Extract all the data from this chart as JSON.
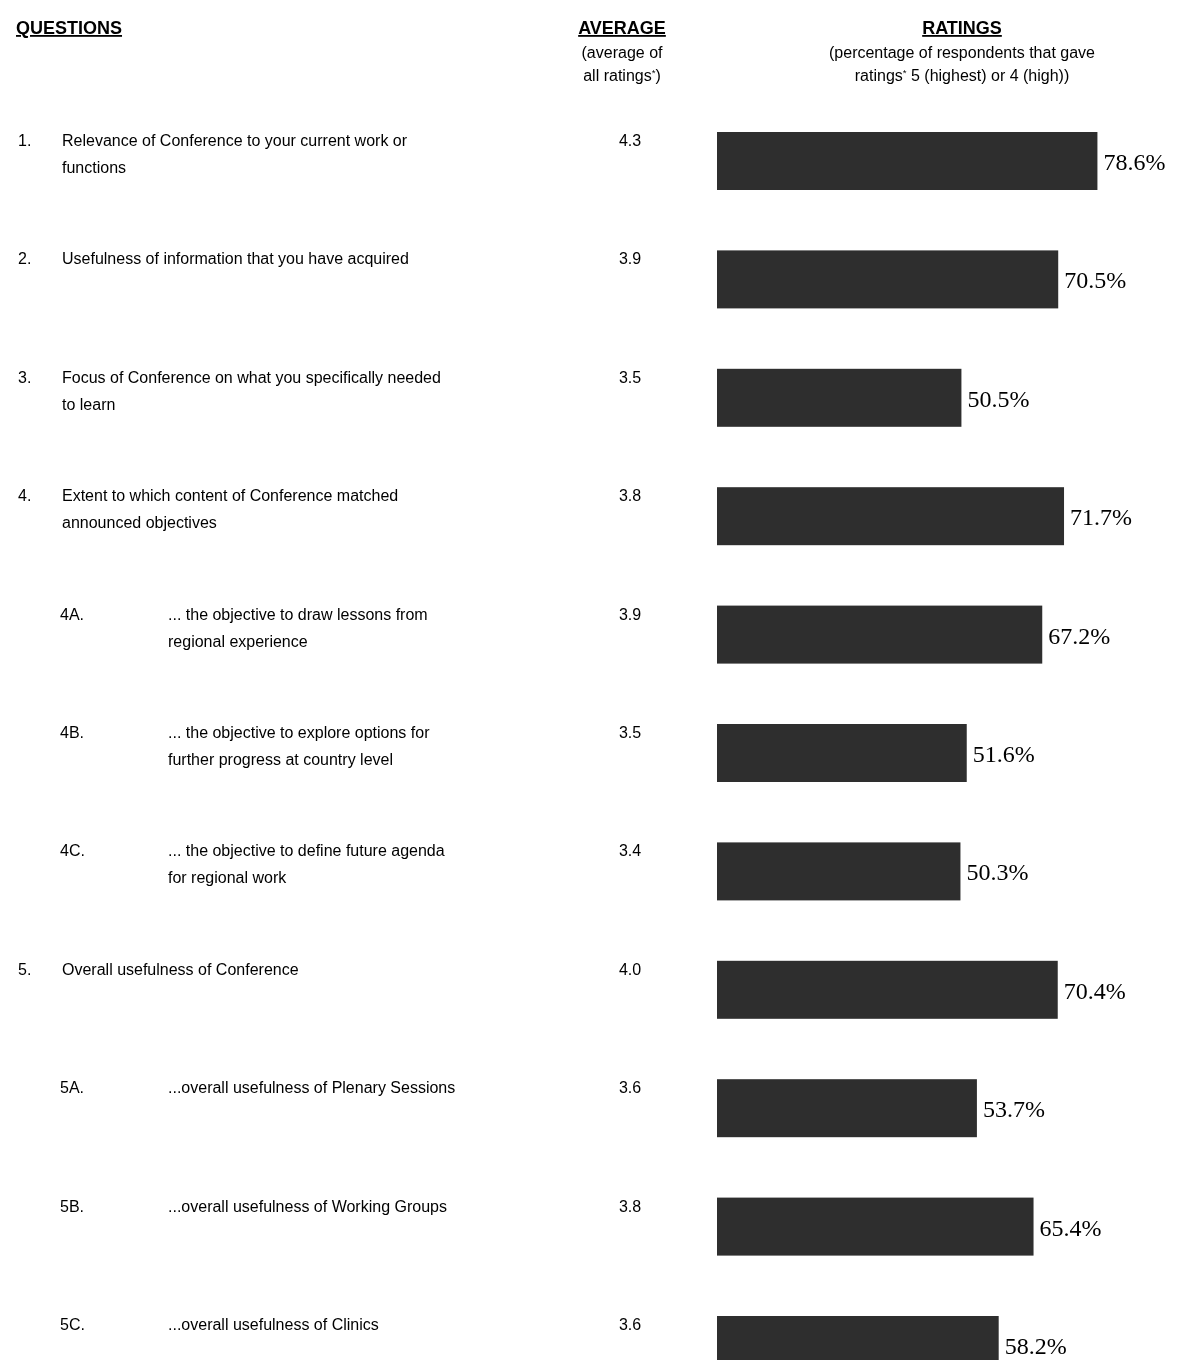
{
  "chart_data": {
    "type": "bar",
    "orientation": "horizontal",
    "categories": [
      "1. Relevance of Conference to your current work or functions",
      "2. Usefulness of information that you have acquired",
      "3. Focus of Conference on what you specifically needed to learn",
      "4. Extent to which content of Conference matched announced objectives",
      "4A. ... the objective to draw lessons from regional experience",
      "4B. ... the objective to explore options for further progress at country level",
      "4C. ... the objective to define future agenda for regional work",
      "5. Overall usefulness of Conference",
      "5A. ...overall usefulness of Plenary Sessions",
      "5B. ...overall usefulness of Working Groups",
      "5C. ...overall usefulness of Clinics"
    ],
    "values": [
      78.6,
      70.5,
      50.5,
      71.7,
      67.2,
      51.6,
      50.3,
      70.4,
      53.7,
      65.4,
      58.2
    ],
    "value_labels": [
      "78.6%",
      "70.5%",
      "50.5%",
      "71.7%",
      "67.2%",
      "51.6%",
      "50.3%",
      "70.4%",
      "53.7%",
      "65.4%",
      "58.2%"
    ],
    "color": "#2e2e2e",
    "annotations": [
      "QUESTIONS",
      "AVERAGE",
      "(average of all ratings$^{*}$)",
      "RATINGS",
      "(percentage of respondents that gave ratings$^{*}$ 5 (highest) or 4 (high))",
      "4.3",
      "3.9",
      "3.5",
      "3.8",
      "3.9",
      "3.5",
      "3.4",
      "4.0",
      "3.6",
      "3.8",
      "3.6"
    ]
  }
}
